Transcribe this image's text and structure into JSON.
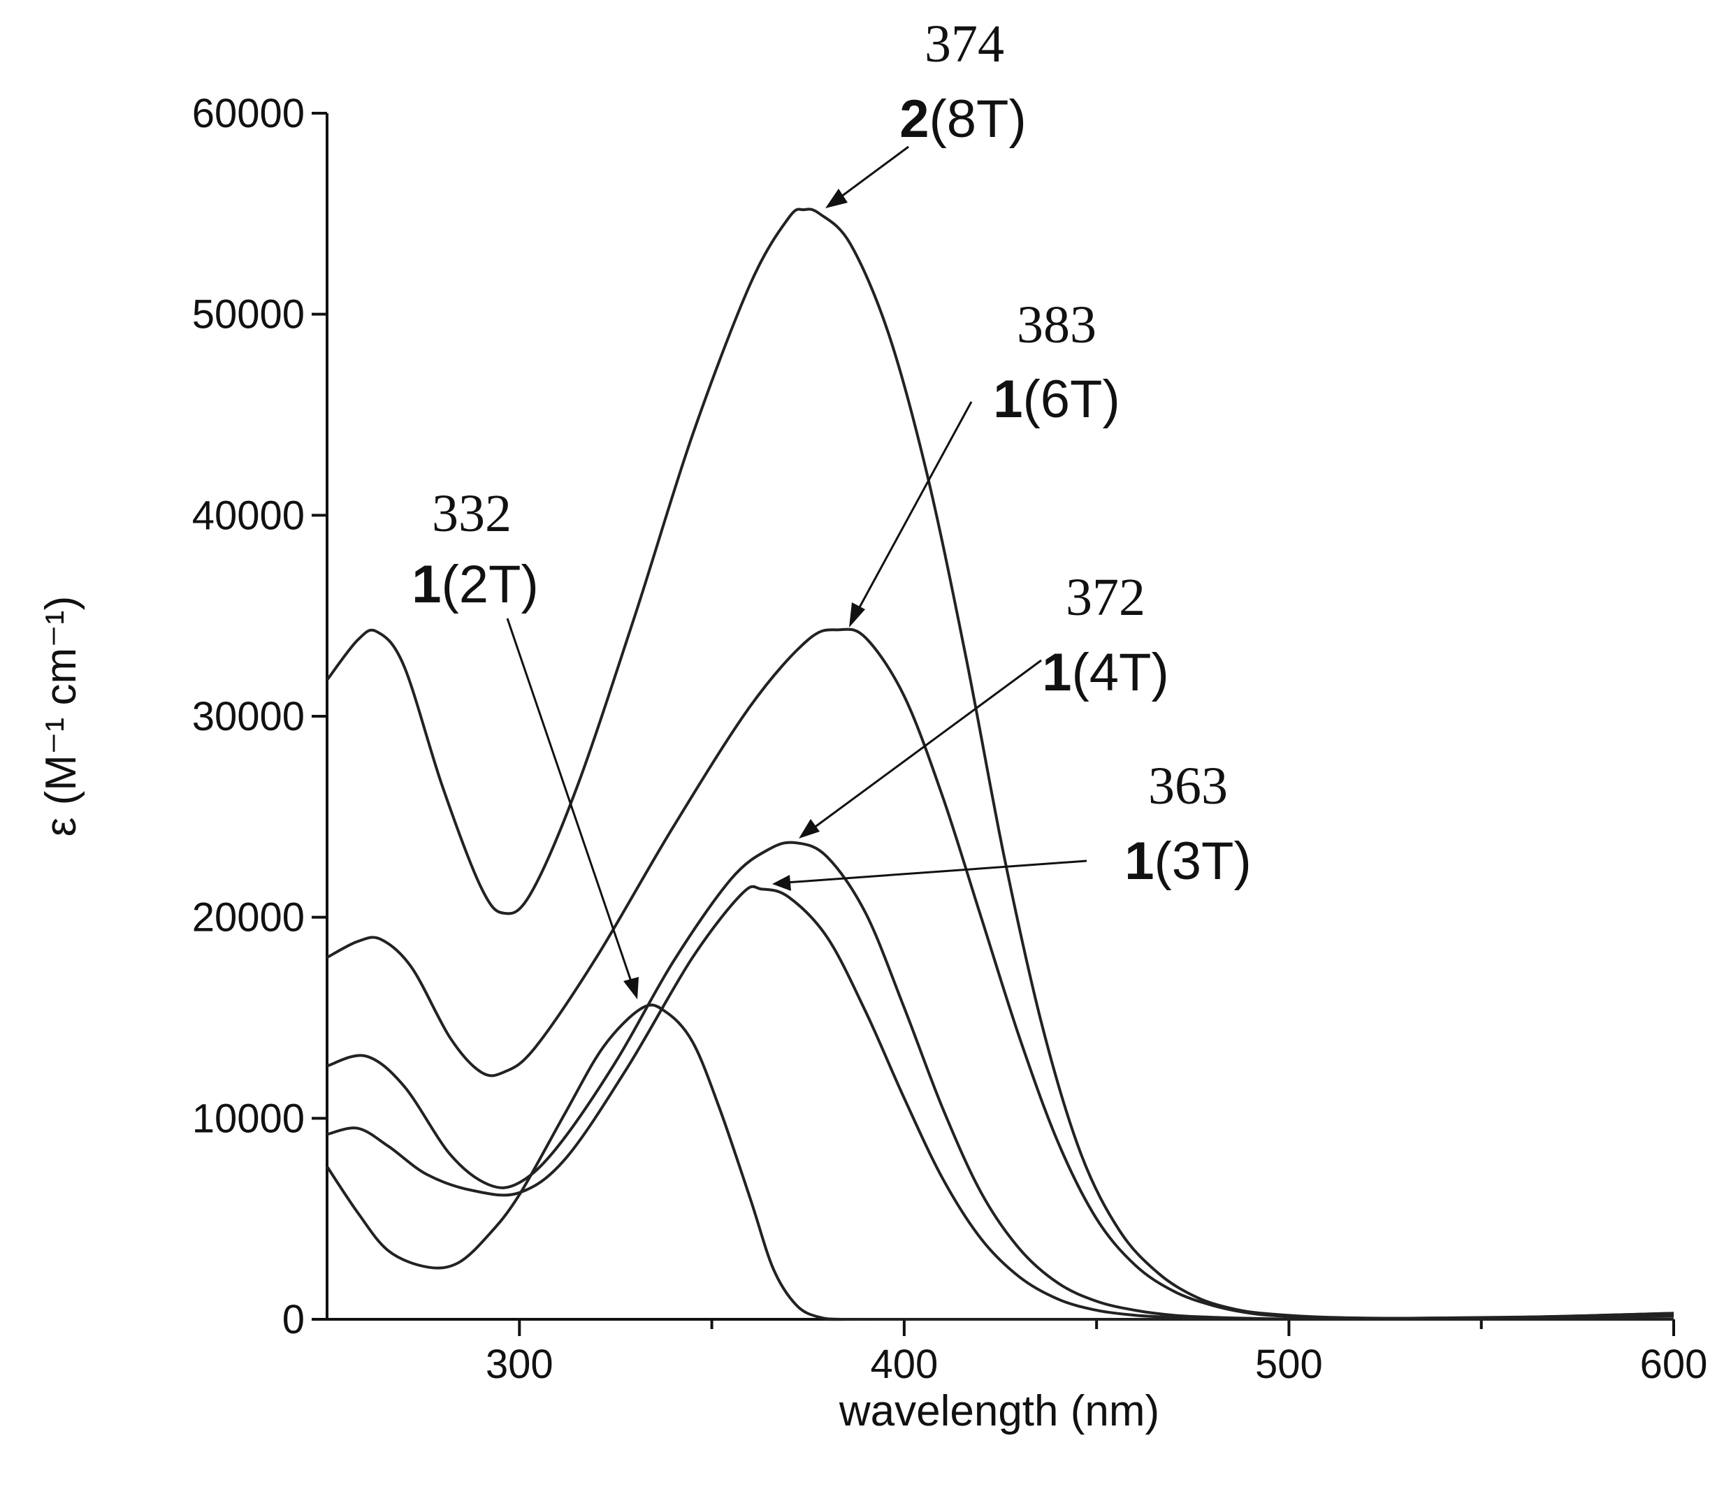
{
  "chart_data": {
    "type": "line",
    "xlabel": "wavelength (nm)",
    "ylabel": "ε (M⁻¹ cm⁻¹)",
    "xlim": [
      250,
      600
    ],
    "ylim": [
      0,
      60000
    ],
    "x_ticks_major": [
      300,
      400,
      500,
      600
    ],
    "x_ticks_minor": [
      350,
      450,
      550
    ],
    "y_ticks": [
      0,
      10000,
      20000,
      30000,
      40000,
      50000,
      60000
    ],
    "grid": false,
    "series": [
      {
        "name": "2(8T)",
        "x": [
          250,
          258,
          263,
          270,
          280,
          290,
          296,
          303,
          315,
          330,
          345,
          360,
          370,
          374,
          378,
          386,
          396,
          406,
          416,
          426,
          436,
          446,
          456,
          466,
          476,
          486,
          496,
          510,
          530,
          560,
          600
        ],
        "y": [
          31800,
          33800,
          34200,
          32500,
          26500,
          21500,
          20200,
          21200,
          26500,
          35000,
          44000,
          51500,
          54800,
          55200,
          55000,
          53500,
          49000,
          42000,
          33000,
          23000,
          14500,
          8200,
          4400,
          2300,
          1100,
          500,
          250,
          100,
          50,
          100,
          300
        ]
      },
      {
        "name": "1(6T)",
        "x": [
          250,
          258,
          264,
          272,
          282,
          290,
          296,
          304,
          320,
          340,
          360,
          375,
          383,
          390,
          400,
          410,
          420,
          430,
          440,
          450,
          460,
          470,
          480,
          490,
          500,
          520,
          560,
          600
        ],
        "y": [
          18000,
          18800,
          18900,
          17500,
          14000,
          12300,
          12300,
          13500,
          18000,
          24500,
          30500,
          33800,
          34300,
          33900,
          31000,
          26000,
          20000,
          14000,
          8800,
          5000,
          2700,
          1400,
          700,
          300,
          150,
          50,
          100,
          300
        ]
      },
      {
        "name": "1(4T)",
        "x": [
          250,
          260,
          270,
          282,
          292,
          300,
          310,
          325,
          340,
          355,
          365,
          372,
          380,
          390,
          400,
          410,
          420,
          430,
          440,
          450,
          460,
          470,
          480,
          490,
          500,
          530,
          600
        ],
        "y": [
          12600,
          13100,
          11600,
          8200,
          6700,
          6800,
          8600,
          12800,
          17800,
          21900,
          23400,
          23700,
          23000,
          20200,
          15500,
          10500,
          6300,
          3500,
          1800,
          900,
          450,
          200,
          100,
          50,
          20,
          50,
          200
        ]
      },
      {
        "name": "1(3T)",
        "x": [
          250,
          258,
          266,
          276,
          288,
          300,
          312,
          328,
          345,
          358,
          363,
          370,
          380,
          390,
          400,
          410,
          420,
          430,
          440,
          450,
          460,
          470,
          480,
          490,
          500,
          600
        ],
        "y": [
          9200,
          9500,
          8600,
          7200,
          6400,
          6300,
          8000,
          12500,
          18000,
          21200,
          21400,
          21000,
          19000,
          15300,
          11000,
          7000,
          4000,
          2100,
          1000,
          450,
          200,
          100,
          50,
          20,
          10,
          150
        ]
      },
      {
        "name": "1(2T)",
        "x": [
          250,
          258,
          266,
          276,
          284,
          292,
          300,
          312,
          322,
          332,
          338,
          345,
          352,
          360,
          366,
          372,
          378,
          385,
          400,
          600
        ],
        "y": [
          7600,
          5300,
          3400,
          2600,
          2800,
          4200,
          6200,
          10300,
          13600,
          15500,
          15300,
          13800,
          10500,
          6000,
          2500,
          700,
          100,
          0,
          0,
          0
        ]
      }
    ],
    "annotations": [
      {
        "peak": "374",
        "compound": "2",
        "label_suffix": "(8T)"
      },
      {
        "peak": "383",
        "compound": "1",
        "label_suffix": "(6T)"
      },
      {
        "peak": "332",
        "compound": "1",
        "label_suffix": "(2T)"
      },
      {
        "peak": "372",
        "compound": "1",
        "label_suffix": "(4T)"
      },
      {
        "peak": "363",
        "compound": "1",
        "label_suffix": "(3T)"
      }
    ]
  }
}
